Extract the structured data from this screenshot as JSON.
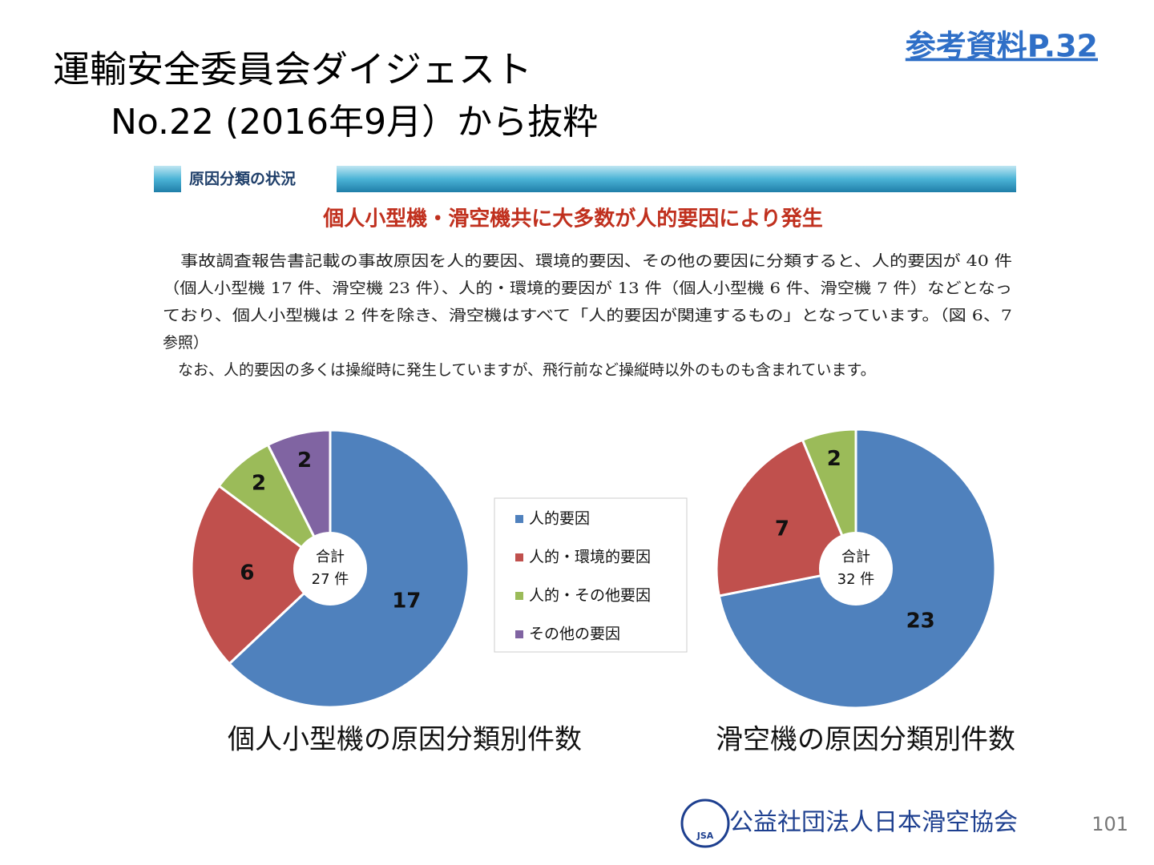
{
  "header": {
    "title_line1": "運輸安全委員会ダイジェスト",
    "title_line2": "No.22 (2016年9月）から抜粋",
    "reference": "参考資料P.32"
  },
  "section": {
    "label": "原因分類の状況",
    "headline": "個人小型機・滑空機共に大多数が人的要因により発生",
    "paragraph": [
      "　事故調査報告書記載の事故原因を人的要因、環境的要因、その他の要因に分類すると、人的要因が 40 件",
      "（個人小型機 17 件、滑空機 23 件）、人的・環境的要因が 13 件（個人小型機 6 件、滑空機 7 件）などとなっ",
      "ており、個人小型機は 2 件を除き、滑空機はすべて「人的要因が関連するもの」となっています。（図 6、7",
      "参照）",
      "　なお、人的要因の多くは操縦時に発生していますが、飛行前など操縦時以外のものも含まれています。"
    ]
  },
  "chart_data": [
    {
      "type": "pie",
      "title": "個人小型機の原因分類別件数",
      "center_label": [
        "合計",
        "27 件"
      ],
      "categories": [
        "人的要因",
        "人的・環境的要因",
        "人的・その他要因",
        "その他の要因"
      ],
      "values": [
        17,
        6,
        2,
        2
      ],
      "colors": [
        "#4f81bd",
        "#c0504d",
        "#9bbb59",
        "#8064a2"
      ]
    },
    {
      "type": "pie",
      "title": "滑空機の原因分類別件数",
      "center_label": [
        "合計",
        "32 件"
      ],
      "categories": [
        "人的要因",
        "人的・環境的要因",
        "人的・その他要因"
      ],
      "values": [
        23,
        7,
        2
      ],
      "colors": [
        "#4f81bd",
        "#c0504d",
        "#9bbb59"
      ]
    }
  ],
  "footer": {
    "logo": "JSA",
    "organization": "公益社団法人日本滑空協会",
    "page_number": "101"
  }
}
